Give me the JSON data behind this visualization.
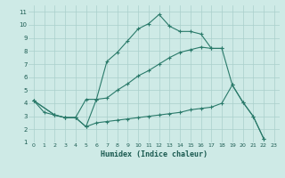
{
  "xlabel": "Humidex (Indice chaleur)",
  "bg_color": "#ceeae6",
  "grid_color": "#aacfcb",
  "line_color": "#2a7a6a",
  "xlim": [
    -0.5,
    23.5
  ],
  "ylim": [
    1,
    11.5
  ],
  "yticks": [
    1,
    2,
    3,
    4,
    5,
    6,
    7,
    8,
    9,
    10,
    11
  ],
  "xticks": [
    0,
    1,
    2,
    3,
    4,
    5,
    6,
    7,
    8,
    9,
    10,
    11,
    12,
    13,
    14,
    15,
    16,
    17,
    18,
    19,
    20,
    21,
    22,
    23
  ],
  "line1_x": [
    0,
    1,
    2,
    3,
    4,
    5,
    6,
    7,
    8,
    9,
    10,
    11,
    12,
    13,
    14,
    15,
    16,
    17,
    18
  ],
  "line1_y": [
    4.2,
    3.3,
    3.1,
    2.9,
    2.9,
    2.2,
    4.3,
    7.2,
    7.9,
    8.8,
    9.7,
    10.1,
    10.8,
    9.9,
    9.5,
    9.5,
    9.3,
    8.2,
    8.2
  ],
  "line2_x": [
    0,
    2,
    3,
    4,
    5,
    6,
    7,
    8,
    9,
    10,
    11,
    12,
    13,
    14,
    15,
    16,
    17,
    18,
    19,
    20,
    21,
    22
  ],
  "line2_y": [
    4.2,
    3.1,
    2.9,
    2.9,
    4.3,
    4.3,
    4.4,
    5.0,
    5.5,
    6.1,
    6.5,
    7.0,
    7.5,
    7.9,
    8.1,
    8.3,
    8.2,
    8.2,
    5.4,
    4.1,
    3.0,
    1.3
  ],
  "line3_x": [
    0,
    2,
    3,
    4,
    5,
    6,
    7,
    8,
    9,
    10,
    11,
    12,
    13,
    14,
    15,
    16,
    17,
    18,
    19,
    20,
    21,
    22
  ],
  "line3_y": [
    4.2,
    3.1,
    2.9,
    2.9,
    2.2,
    2.5,
    2.6,
    2.7,
    2.8,
    2.9,
    3.0,
    3.1,
    3.2,
    3.3,
    3.5,
    3.6,
    3.7,
    4.0,
    5.4,
    4.1,
    3.0,
    1.3
  ]
}
